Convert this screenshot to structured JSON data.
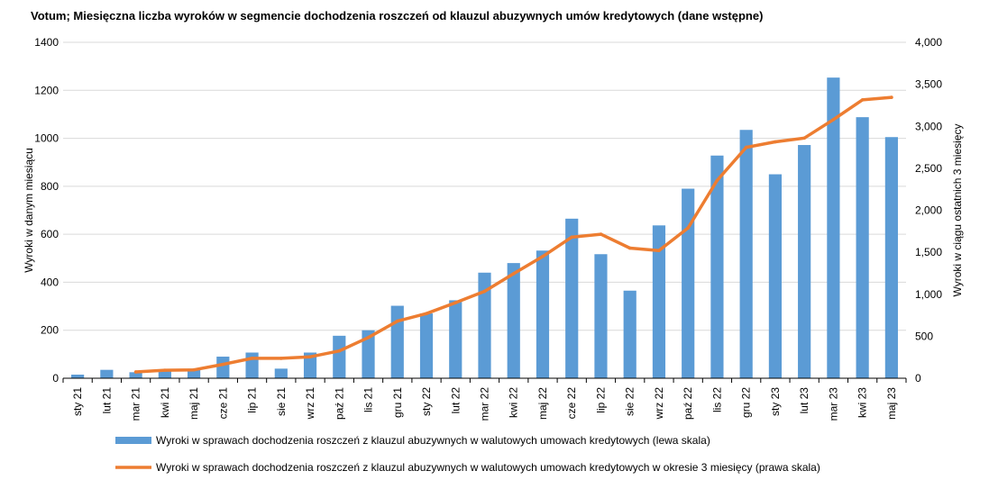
{
  "chart_data": {
    "type": "bar",
    "title": "Votum; Miesięczna liczba wyroków w segmencie dochodzenia roszczeń od klauzul abuzywnych umów kredytowych (dane wstępne)",
    "ylabel": "Wyroki w danym miesiącu",
    "y2label": "Wyroki w ciągu ostatnich 3 miesięcy",
    "ylim": [
      0,
      1400
    ],
    "y2lim": [
      0,
      4000
    ],
    "yticks": [
      "0",
      "200",
      "400",
      "600",
      "800",
      "1000",
      "1200",
      "1400"
    ],
    "y2ticks": [
      "0",
      "500",
      "1,000",
      "1,500",
      "2,000",
      "2,500",
      "3,000",
      "3,500",
      "4,000"
    ],
    "grid": true,
    "legend_position": "bottom",
    "categories": [
      "sty 21",
      "lut 21",
      "mar 21",
      "kwi 21",
      "maj 21",
      "cze 21",
      "lip 21",
      "sie 21",
      "wrz 21",
      "paź 21",
      "lis 21",
      "gru 21",
      "sty 22",
      "lut 22",
      "mar 22",
      "kwi 22",
      "maj 22",
      "cze 22",
      "lip 22",
      "sie 22",
      "wrz 22",
      "paź 22",
      "lis 22",
      "gru 22",
      "sty 23",
      "lut 23",
      "mar 23",
      "kwi 23",
      "maj 23"
    ],
    "series": [
      {
        "name": "Wyroki w sprawach dochodzenia roszczeń z klauzul abuzywnych w walutowych umowach kredytowych (lewa skala)",
        "type": "bar",
        "axis": "left",
        "color": "#5B9BD5",
        "values": [
          15,
          35,
          25,
          35,
          40,
          90,
          107,
          40,
          107,
          177,
          200,
          302,
          270,
          325,
          440,
          480,
          532,
          665,
          517,
          365,
          637,
          790,
          928,
          1035,
          850,
          972,
          1253,
          1088,
          1005
        ]
      },
      {
        "name": "Wyroki w sprawach dochodzenia roszczeń z klauzul abuzywnych w walutowych umowach kredytowych w okresie 3 miesięcy (prawa skala)",
        "type": "line",
        "axis": "right",
        "color": "#ED7D31",
        "values": [
          null,
          null,
          75,
          95,
          100,
          165,
          237,
          237,
          255,
          325,
          485,
          680,
          770,
          900,
          1035,
          1245,
          1450,
          1680,
          1715,
          1550,
          1520,
          1790,
          2355,
          2750,
          2815,
          2860,
          3080,
          3315,
          3345
        ]
      }
    ]
  }
}
